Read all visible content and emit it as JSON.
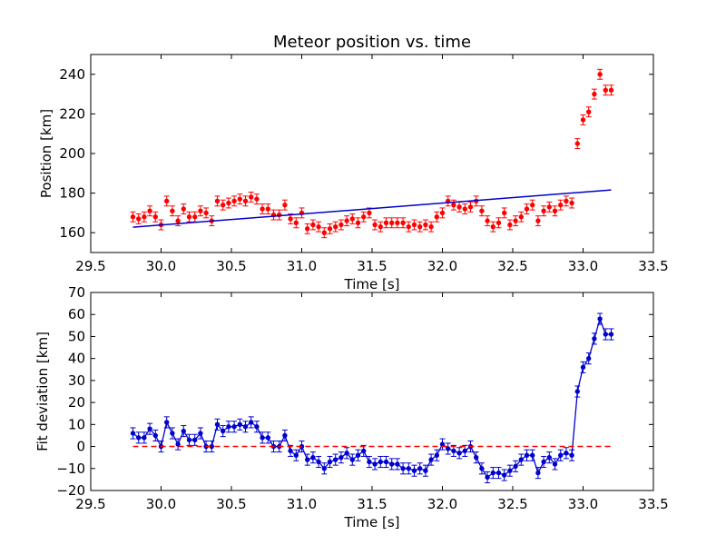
{
  "chart_data": [
    {
      "type": "scatter",
      "title": "Meteor position vs. time",
      "xlabel": "Time [s]",
      "ylabel": "Position [km]",
      "xlim": [
        29.5,
        33.5
      ],
      "ylim": [
        150,
        250
      ],
      "xticks": [
        "29.5",
        "30.0",
        "30.5",
        "31.0",
        "31.5",
        "32.0",
        "32.5",
        "33.0",
        "33.5"
      ],
      "yticks": [
        "160",
        "180",
        "200",
        "220",
        "240"
      ],
      "grid": false,
      "colors": {
        "points": "#ff0000",
        "fit": "#0000cc"
      },
      "series": [
        {
          "kind": "points-with-errorbars",
          "yerr": 2.5,
          "x": [
            29.8,
            29.84,
            29.88,
            29.92,
            29.96,
            30.0,
            30.04,
            30.08,
            30.12,
            30.16,
            30.2,
            30.24,
            30.28,
            30.32,
            30.36,
            30.4,
            30.44,
            30.48,
            30.52,
            30.56,
            30.6,
            30.64,
            30.68,
            30.72,
            30.76,
            30.8,
            30.84,
            30.88,
            30.92,
            30.96,
            31.0,
            31.04,
            31.08,
            31.12,
            31.16,
            31.2,
            31.24,
            31.28,
            31.32,
            31.36,
            31.4,
            31.44,
            31.48,
            31.52,
            31.56,
            31.6,
            31.64,
            31.68,
            31.72,
            31.76,
            31.8,
            31.84,
            31.88,
            31.92,
            31.96,
            32.0,
            32.04,
            32.08,
            32.12,
            32.16,
            32.2,
            32.24,
            32.28,
            32.32,
            32.36,
            32.4,
            32.44,
            32.48,
            32.52,
            32.56,
            32.6,
            32.64,
            32.68,
            32.72,
            32.76,
            32.8,
            32.84,
            32.88,
            32.92,
            32.96,
            33.0,
            33.04,
            33.08,
            33.12,
            33.16,
            33.2
          ],
          "y": [
            168,
            167,
            168,
            171,
            168,
            164,
            176,
            171,
            166,
            172,
            168,
            168,
            171,
            170,
            166,
            176,
            174,
            175,
            176,
            177,
            176,
            178,
            177,
            172,
            172,
            169,
            169,
            174,
            167,
            165,
            170,
            162,
            164,
            163,
            160,
            162,
            163,
            164,
            166,
            167,
            165,
            168,
            170,
            164,
            163,
            165,
            165,
            165,
            165,
            163,
            164,
            163,
            164,
            163,
            168,
            170,
            176,
            174,
            173,
            172,
            173,
            176,
            171,
            166,
            163,
            165,
            170,
            164,
            166,
            168,
            172,
            174,
            166,
            171,
            173,
            171,
            174,
            176,
            175,
            205,
            217,
            221,
            230,
            240,
            232,
            232
          ]
        },
        {
          "kind": "fit-line",
          "x": [
            29.8,
            33.2
          ],
          "y": [
            162.8,
            181.6
          ]
        }
      ]
    },
    {
      "type": "line",
      "title": "",
      "xlabel": "Time [s]",
      "ylabel": "Fit deviation [km]",
      "xlim": [
        29.5,
        33.5
      ],
      "ylim": [
        -20,
        70
      ],
      "xticks": [
        "29.5",
        "30.0",
        "30.5",
        "31.0",
        "31.5",
        "32.0",
        "32.5",
        "33.0",
        "33.5"
      ],
      "yticks": [
        "−20",
        "−10",
        "0",
        "10",
        "20",
        "30",
        "40",
        "50",
        "60",
        "70"
      ],
      "grid": false,
      "colors": {
        "line": "#0000cc",
        "zero": "#ff0000"
      },
      "series": [
        {
          "kind": "line-with-errorbars",
          "yerr": 2.5,
          "x": [
            29.8,
            29.84,
            29.88,
            29.92,
            29.96,
            30.0,
            30.04,
            30.08,
            30.12,
            30.16,
            30.2,
            30.24,
            30.28,
            30.32,
            30.36,
            30.4,
            30.44,
            30.48,
            30.52,
            30.56,
            30.6,
            30.64,
            30.68,
            30.72,
            30.76,
            30.8,
            30.84,
            30.88,
            30.92,
            30.96,
            31.0,
            31.04,
            31.08,
            31.12,
            31.16,
            31.2,
            31.24,
            31.28,
            31.32,
            31.36,
            31.4,
            31.44,
            31.48,
            31.52,
            31.56,
            31.6,
            31.64,
            31.68,
            31.72,
            31.76,
            31.8,
            31.84,
            31.88,
            31.92,
            31.96,
            32.0,
            32.04,
            32.08,
            32.12,
            32.16,
            32.2,
            32.24,
            32.28,
            32.32,
            32.36,
            32.4,
            32.44,
            32.48,
            32.52,
            32.56,
            32.6,
            32.64,
            32.68,
            32.72,
            32.76,
            32.8,
            32.84,
            32.88,
            32.92,
            32.96,
            33.0,
            33.04,
            33.08,
            33.12,
            33.16,
            33.2
          ],
          "y": [
            6,
            4,
            4,
            8,
            5,
            0,
            11,
            6,
            1,
            7,
            3,
            3,
            6,
            0,
            0,
            10,
            7,
            9,
            9,
            10,
            9,
            11,
            9,
            4,
            4,
            0,
            0,
            5,
            -2,
            -4,
            0,
            -6,
            -5,
            -7,
            -10,
            -7,
            -6,
            -5,
            -3,
            -6,
            -4,
            -2,
            -7,
            -8,
            -7,
            -7,
            -8,
            -8,
            -10,
            -10,
            -11,
            -10,
            -11,
            -6,
            -4,
            1,
            -1,
            -2,
            -3,
            -2,
            0,
            -5,
            -10,
            -14,
            -12,
            -12,
            -13,
            -11,
            -9,
            -6,
            -4,
            -4,
            -12,
            -7,
            -5,
            -8,
            -4,
            -3,
            -4,
            25,
            36,
            40,
            49,
            58,
            51,
            51
          ]
        },
        {
          "kind": "zero-line",
          "x": [
            29.8,
            33.2
          ],
          "y": [
            0,
            0
          ]
        }
      ]
    }
  ]
}
